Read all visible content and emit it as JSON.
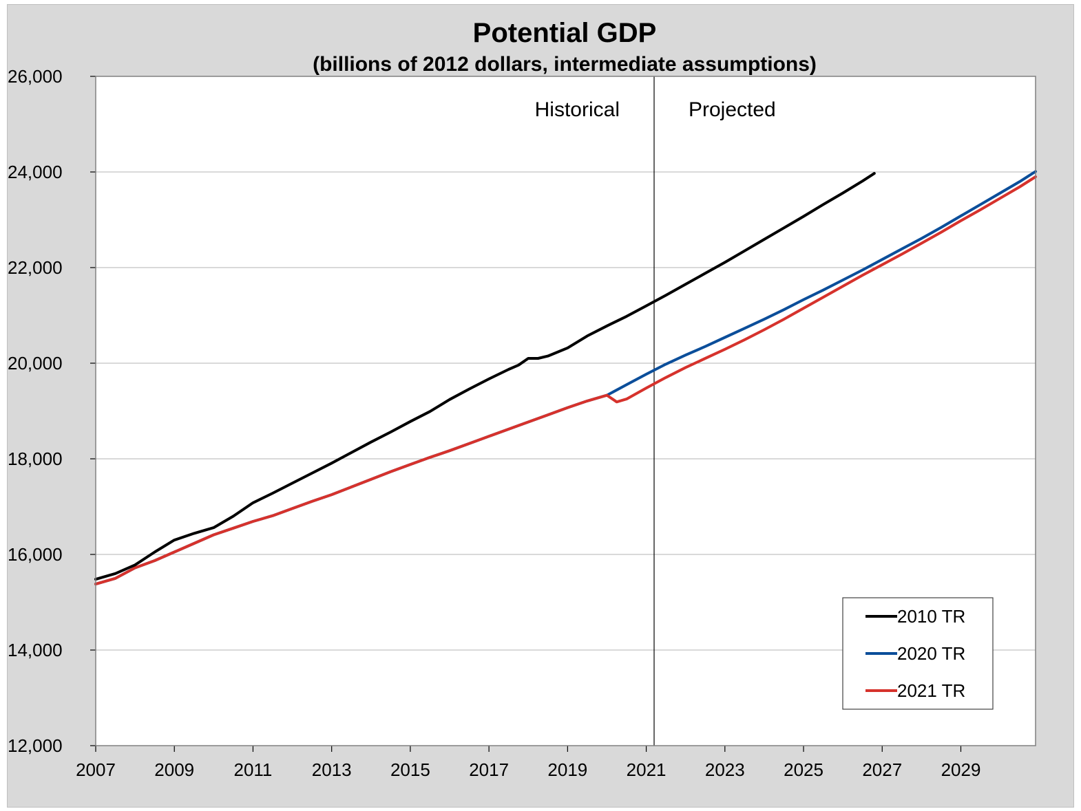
{
  "chart_data": {
    "type": "line",
    "title": "Potential GDP",
    "subtitle": "(billions of 2012 dollars, intermediate assumptions)",
    "xlabel": "",
    "ylabel": "",
    "xlim": [
      2007,
      2030.9
    ],
    "ylim": [
      12000,
      26000
    ],
    "x_ticks": [
      2007,
      2009,
      2011,
      2013,
      2015,
      2017,
      2019,
      2021,
      2023,
      2025,
      2027,
      2029
    ],
    "x_tick_labels": [
      "2007",
      "2009",
      "2011",
      "2013",
      "2015",
      "2017",
      "2019",
      "2021",
      "2023",
      "2025",
      "2027",
      "2029"
    ],
    "y_ticks": [
      12000,
      14000,
      16000,
      18000,
      20000,
      22000,
      24000,
      26000
    ],
    "y_tick_labels": [
      "12,000",
      "14,000",
      "16,000",
      "18,000",
      "20,000",
      "22,000",
      "24,000",
      "26,000"
    ],
    "grid": "horizontal",
    "divider_x": 2021.2,
    "annotations": {
      "left": "Historical",
      "right": "Projected"
    },
    "legend_position": "bottom-right",
    "series": [
      {
        "name": "2010 TR",
        "color": "#000000",
        "x": [
          2007,
          2007.5,
          2008,
          2008.5,
          2009,
          2009.5,
          2010,
          2010.5,
          2011,
          2011.5,
          2012,
          2012.5,
          2013,
          2013.5,
          2014,
          2014.5,
          2015,
          2015.5,
          2016,
          2016.5,
          2017,
          2017.5,
          2017.75,
          2018,
          2018.25,
          2018.5,
          2019,
          2019.5,
          2020,
          2020.5,
          2021,
          2021.5,
          2022,
          2022.5,
          2023,
          2023.5,
          2024,
          2024.5,
          2025,
          2025.5,
          2026,
          2026.5,
          2026.8
        ],
        "values": [
          15480,
          15600,
          15780,
          16050,
          16300,
          16440,
          16560,
          16800,
          17080,
          17280,
          17490,
          17700,
          17910,
          18130,
          18350,
          18560,
          18780,
          18990,
          19240,
          19460,
          19670,
          19870,
          19960,
          20100,
          20100,
          20150,
          20320,
          20570,
          20780,
          20980,
          21200,
          21420,
          21650,
          21880,
          22110,
          22350,
          22590,
          22830,
          23070,
          23320,
          23560,
          23810,
          23970
        ]
      },
      {
        "name": "2020 TR",
        "color": "#0b4e9a",
        "x": [
          2007,
          2007.5,
          2008,
          2008.5,
          2009,
          2009.5,
          2010,
          2010.5,
          2011,
          2011.5,
          2012,
          2012.5,
          2013,
          2013.5,
          2014,
          2014.5,
          2015,
          2015.5,
          2016,
          2016.5,
          2017,
          2017.5,
          2018,
          2018.5,
          2019,
          2019.5,
          2020,
          2020.5,
          2021,
          2021.5,
          2022,
          2022.5,
          2023,
          2023.5,
          2024,
          2024.5,
          2025,
          2025.5,
          2026,
          2026.5,
          2027,
          2027.5,
          2028,
          2028.5,
          2029,
          2029.5,
          2030,
          2030.5,
          2030.9
        ],
        "values": [
          15380,
          15500,
          15720,
          15870,
          16050,
          16230,
          16410,
          16550,
          16690,
          16810,
          16960,
          17110,
          17250,
          17410,
          17570,
          17730,
          17880,
          18030,
          18170,
          18320,
          18470,
          18620,
          18770,
          18920,
          19070,
          19210,
          19330,
          19550,
          19770,
          19980,
          20170,
          20350,
          20540,
          20730,
          20920,
          21120,
          21330,
          21530,
          21740,
          21950,
          22170,
          22390,
          22610,
          22840,
          23080,
          23320,
          23560,
          23800,
          24010
        ]
      },
      {
        "name": "2021 TR",
        "color": "#d6322c",
        "x": [
          2007,
          2007.5,
          2008,
          2008.5,
          2009,
          2009.5,
          2010,
          2010.5,
          2011,
          2011.5,
          2012,
          2012.5,
          2013,
          2013.5,
          2014,
          2014.5,
          2015,
          2015.5,
          2016,
          2016.5,
          2017,
          2017.5,
          2018,
          2018.5,
          2019,
          2019.5,
          2020,
          2020.25,
          2020.5,
          2021,
          2021.5,
          2022,
          2022.5,
          2023,
          2023.5,
          2024,
          2024.5,
          2025,
          2025.5,
          2026,
          2026.5,
          2027,
          2027.5,
          2028,
          2028.5,
          2029,
          2029.5,
          2030,
          2030.5,
          2030.9
        ],
        "values": [
          15380,
          15500,
          15720,
          15870,
          16050,
          16230,
          16410,
          16550,
          16690,
          16810,
          16960,
          17110,
          17250,
          17410,
          17570,
          17730,
          17880,
          18030,
          18170,
          18320,
          18470,
          18620,
          18770,
          18920,
          19070,
          19210,
          19330,
          19190,
          19250,
          19480,
          19700,
          19910,
          20100,
          20290,
          20490,
          20700,
          20920,
          21150,
          21380,
          21610,
          21840,
          22060,
          22280,
          22510,
          22740,
          22980,
          23210,
          23450,
          23690,
          23900
        ]
      }
    ]
  }
}
